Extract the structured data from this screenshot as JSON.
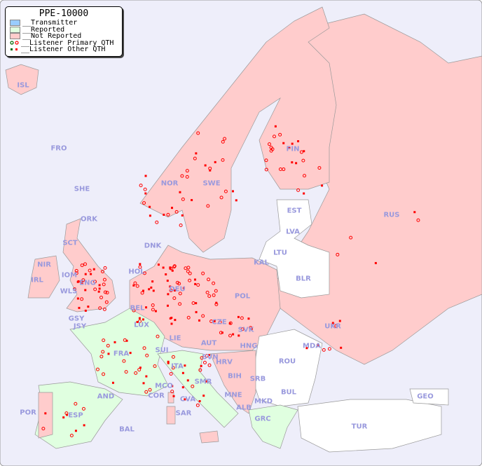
{
  "legend": {
    "title": "PPE-10000",
    "items": [
      {
        "label": "__Transmitter",
        "color": "#99ccff"
      },
      {
        "label": "__Reported",
        "color": "#e0ffe0"
      },
      {
        "label": "__Not Reported",
        "color": "#ffcccc"
      },
      {
        "label": "__Listener Primary QTH",
        "marker": "open-circle"
      },
      {
        "label": "__Listener Other QTH",
        "marker": "filled-square"
      }
    ]
  },
  "colors": {
    "sea": "#eeeefa",
    "not_reported": "#ffcccc",
    "reported": "#e0ffe0",
    "no_data": "#ffffff",
    "label": "#9999dd",
    "marker": "#ff0000",
    "marker_alt": "#006600"
  },
  "countries": [
    "ISL",
    "FRO",
    "SHE",
    "ORK",
    "NOR",
    "SWE",
    "FIN",
    "EST",
    "LVA",
    "LTU",
    "RUS",
    "DNK",
    "KAL",
    "BLR",
    "HOL",
    "DEU",
    "POL",
    "UKR",
    "IRL",
    "WLS",
    "IOM",
    "ENG",
    "SCT",
    "NIR",
    "GSY",
    "JSY",
    "BEL",
    "LUX",
    "CZE",
    "SVK",
    "AUT",
    "HNG",
    "MDA",
    "FRA",
    "SUI",
    "LIE",
    "SVN",
    "HRV",
    "ROU",
    "ITA",
    "BIH",
    "SRB",
    "SMR",
    "MCO",
    "COR",
    "AND",
    "BUL",
    "MNE",
    "GEO",
    "ALB",
    "MKD",
    "CVA",
    "POR",
    "ESP",
    "SAR",
    "GRC",
    "TUR",
    "BAL"
  ]
}
